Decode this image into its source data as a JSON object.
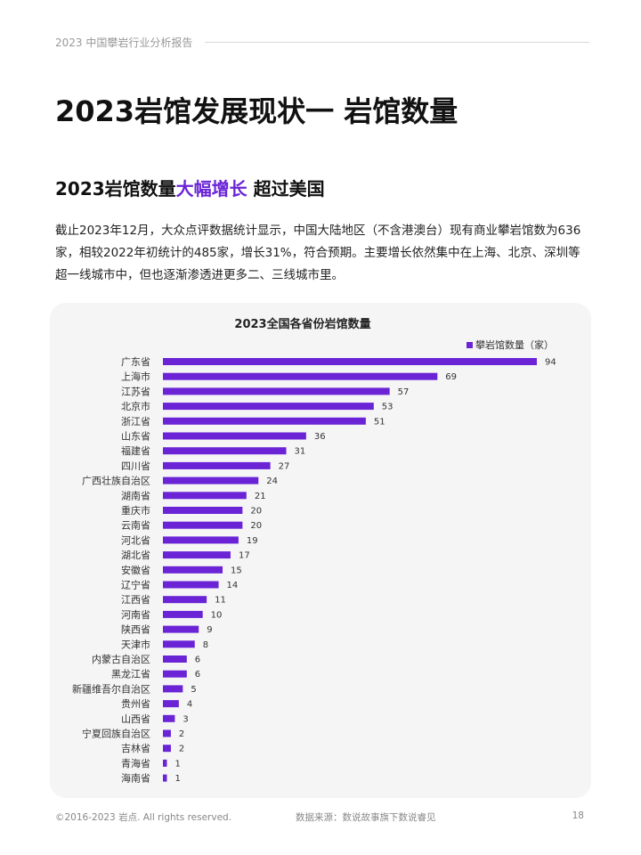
{
  "header": {
    "report_title": "2023 中国攀岩行业分析报告"
  },
  "page_title": "2023岩馆发展现状一 岩馆数量",
  "subtitle": {
    "part1": "2023岩馆数量",
    "highlight": "大幅增长",
    "part2": " 超过美国"
  },
  "intro": "截止2023年12月，大众点评数据统计显示，中国大陆地区（不含港澳台）现有商业攀岩馆数为636家，相较2022年初统计的485家，增长31%，符合预期。主要增长依然集中在上海、北京、深圳等超一线城市中，但也逐渐渗透进更多二、三线城市里。",
  "colors": {
    "accent": "#6a24d6",
    "bar": "#6a24d6"
  },
  "chart_data": {
    "type": "bar",
    "orientation": "horizontal",
    "title": "2023全国各省份岩馆数量",
    "legend": "攀岩馆数量（家）",
    "legend_position": "top-right",
    "grid": false,
    "xlim": [
      0,
      94
    ],
    "categories": [
      "广东省",
      "上海市",
      "江苏省",
      "北京市",
      "浙江省",
      "山东省",
      "福建省",
      "四川省",
      "广西壮族自治区",
      "湖南省",
      "重庆市",
      "云南省",
      "河北省",
      "湖北省",
      "安徽省",
      "辽宁省",
      "江西省",
      "河南省",
      "陕西省",
      "天津市",
      "内蒙古自治区",
      "黑龙江省",
      "新疆维吾尔自治区",
      "贵州省",
      "山西省",
      "宁夏回族自治区",
      "吉林省",
      "青海省",
      "海南省"
    ],
    "values": [
      94,
      69,
      57,
      53,
      51,
      36,
      31,
      27,
      24,
      21,
      20,
      20,
      19,
      17,
      15,
      14,
      11,
      10,
      9,
      8,
      6,
      6,
      5,
      4,
      3,
      2,
      2,
      1,
      1
    ]
  },
  "footer": {
    "copyright": "©2016-2023 岩点. All rights reserved.",
    "source": "数据来源：数说故事旗下数说睿见",
    "page_number": "18"
  }
}
